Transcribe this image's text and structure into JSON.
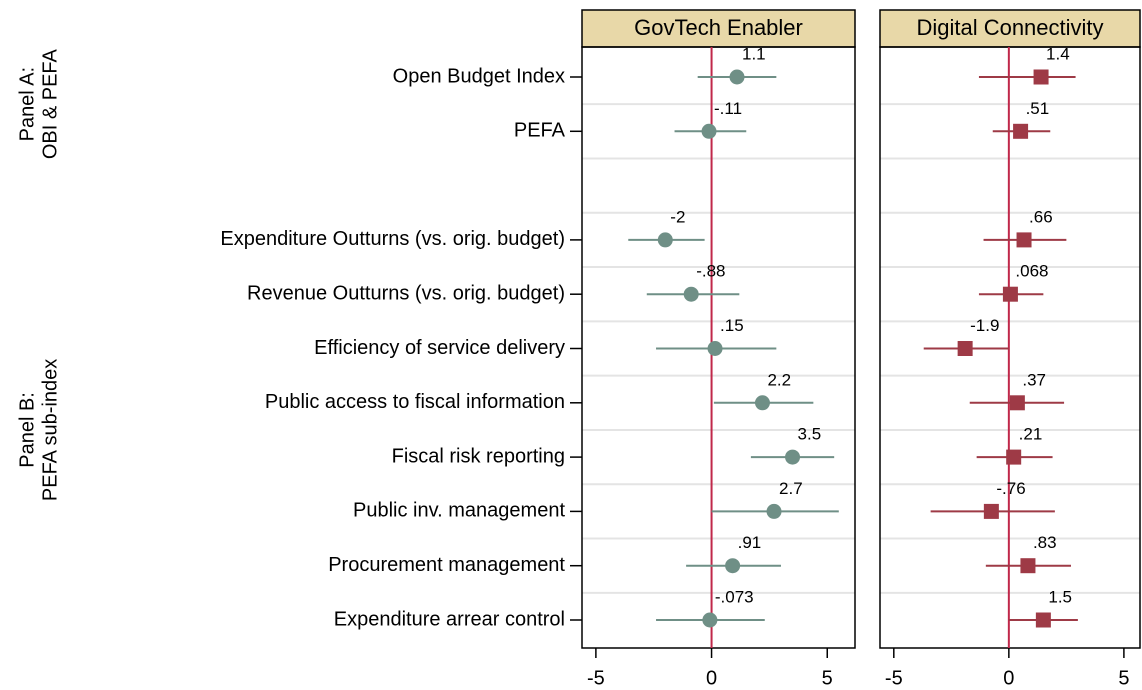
{
  "chart_data": [
    {
      "type": "coefplot",
      "title": "GovTech Enabler",
      "marker": "circle",
      "color": "#6f8f86",
      "zero_line_color": "#c0284a",
      "row_group_labels": [
        [
          "Panel A:",
          "OBI & PEFA"
        ],
        [
          "Panel B:",
          "PEFA sub-index"
        ]
      ],
      "categories": [
        "Open Budget Index",
        "PEFA",
        null,
        "Expenditure Outturns (vs. orig. budget)",
        "Revenue Outturns (vs. orig. budget)",
        "Efficiency of service delivery",
        "Public access to fiscal information",
        "Fiscal risk reporting",
        "Public inv. management",
        "Procurement management",
        "Expenditure arrear control"
      ],
      "values": [
        1.1,
        -0.11,
        null,
        -2,
        -0.88,
        0.15,
        2.2,
        3.5,
        2.7,
        0.91,
        -0.073
      ],
      "value_labels": [
        "1.1",
        "-.11",
        null,
        "-2",
        "-.88",
        ".15",
        "2.2",
        "3.5",
        "2.7",
        ".91",
        "-.073"
      ],
      "ci_low": [
        -0.6,
        -1.6,
        null,
        -3.6,
        -2.8,
        -2.4,
        0.1,
        1.7,
        0,
        -1.1,
        -2.4
      ],
      "ci_high": [
        2.8,
        1.5,
        null,
        -0.3,
        1.2,
        2.8,
        4.4,
        5.3,
        5.5,
        3,
        2.3
      ],
      "xlim": [
        -5.6,
        6.2
      ],
      "xticks": [
        -5,
        0,
        5
      ]
    },
    {
      "type": "coefplot",
      "title": "Digital Connectivity",
      "marker": "square",
      "color": "#9e3a46",
      "zero_line_color": "#c0284a",
      "values": [
        1.4,
        0.51,
        null,
        0.66,
        0.068,
        -1.9,
        0.37,
        0.21,
        -0.76,
        0.83,
        1.5
      ],
      "value_labels": [
        "1.4",
        ".51",
        null,
        ".66",
        ".068",
        "-1.9",
        ".37",
        ".21",
        "-.76",
        ".83",
        "1.5"
      ],
      "ci_low": [
        -1.3,
        -0.7,
        null,
        -1.1,
        -1.3,
        -3.7,
        -1.7,
        -1.4,
        -3.4,
        -1,
        0
      ],
      "ci_high": [
        2.9,
        1.8,
        null,
        2.5,
        1.5,
        0,
        2.4,
        1.9,
        2,
        2.7,
        3
      ],
      "xlim": [
        -5.6,
        5.7
      ],
      "xticks": [
        -5,
        0,
        5
      ]
    }
  ]
}
